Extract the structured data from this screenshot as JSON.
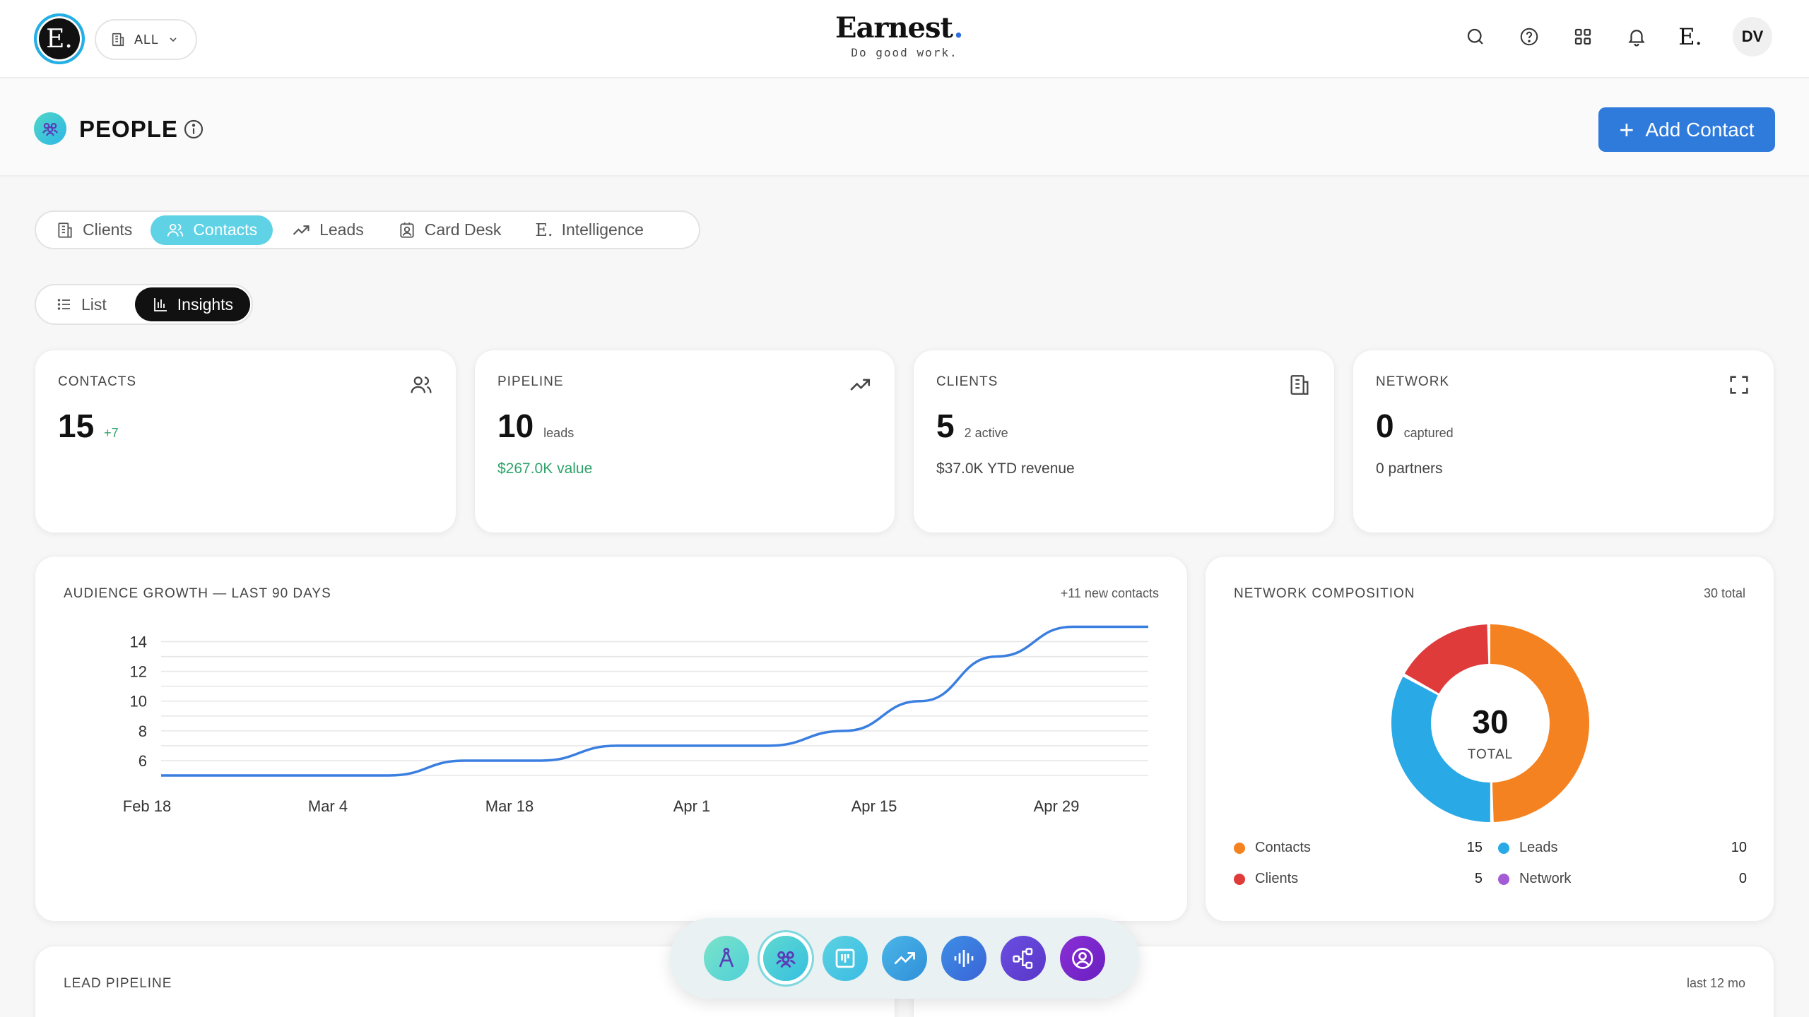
{
  "header": {
    "logo_letter": "E.",
    "scope": "ALL",
    "brand_name": "Earnest",
    "brand_dot": ".",
    "brand_tagline": "Do good work.",
    "intel_mark": "E.",
    "avatar_initials": "DV",
    "icons": [
      "search-icon",
      "help-icon",
      "grid-icon",
      "bell-icon",
      "intelligence-icon"
    ]
  },
  "page": {
    "title": "PEOPLE",
    "add_button": "Add Contact"
  },
  "tabs": [
    {
      "label": "Clients",
      "icon": "building-icon",
      "active": false
    },
    {
      "label": "Contacts",
      "icon": "users-icon",
      "active": true
    },
    {
      "label": "Leads",
      "icon": "trend-icon",
      "active": false
    },
    {
      "label": "Card Desk",
      "icon": "card-icon",
      "active": false
    },
    {
      "label": "Intelligence",
      "icon": "intelligence-icon",
      "active": false
    }
  ],
  "views": [
    {
      "label": "List",
      "active": false
    },
    {
      "label": "Insights",
      "active": true
    }
  ],
  "stats": [
    {
      "label": "CONTACTS",
      "value": "15",
      "sub": "+7",
      "foot": ""
    },
    {
      "label": "PIPELINE",
      "value": "10",
      "sub": "leads",
      "foot": "$267.0K value"
    },
    {
      "label": "CLIENTS",
      "value": "5",
      "sub": "2 active",
      "foot": "$37.0K YTD revenue"
    },
    {
      "label": "NETWORK",
      "value": "0",
      "sub": "captured",
      "foot": "0 partners"
    }
  ],
  "growth": {
    "title": "AUDIENCE GROWTH — LAST 90 DAYS",
    "note": "+11 new contacts"
  },
  "composition": {
    "title": "NETWORK COMPOSITION",
    "note": "30 total",
    "center_value": "30",
    "center_label": "TOTAL",
    "items": [
      {
        "name": "Contacts",
        "value": "15",
        "color": "#f58220"
      },
      {
        "name": "Leads",
        "value": "10",
        "color": "#29a9e6"
      },
      {
        "name": "Clients",
        "value": "5",
        "color": "#e03b3b"
      },
      {
        "name": "Network",
        "value": "0",
        "color": "#a35cd6"
      }
    ]
  },
  "bottom": {
    "lead_pipeline_title": "LEAD PIPELINE",
    "right_note": "last 12 mo"
  },
  "dock": [
    "compass-icon",
    "people-icon",
    "board-icon",
    "trend-icon",
    "voice-icon",
    "network-icon",
    "profile-icon"
  ],
  "chart_data": [
    {
      "type": "line",
      "title": "AUDIENCE GROWTH — LAST 90 DAYS",
      "xlabel": "",
      "ylabel": "",
      "x_ticks": [
        "Feb 18",
        "Mar 4",
        "Mar 18",
        "Apr 1",
        "Apr 15",
        "Apr 29"
      ],
      "y_ticks": [
        6,
        8,
        10,
        12,
        14
      ],
      "ylim": [
        5,
        14.5
      ],
      "grid": true,
      "series": [
        {
          "x": [
            "Feb 11",
            "Feb 18",
            "Feb 25",
            "Mar 4",
            "Mar 11",
            "Mar 18",
            "Mar 25",
            "Apr 1",
            "Apr 8",
            "Apr 15",
            "Apr 22",
            "Apr 29",
            "May 6",
            "May 12"
          ],
          "values": [
            5,
            5,
            5,
            5,
            6,
            6,
            7,
            7,
            7,
            8,
            10,
            13,
            15,
            15
          ]
        }
      ]
    },
    {
      "type": "pie",
      "title": "NETWORK COMPOSITION",
      "categories": [
        "Contacts",
        "Leads",
        "Clients",
        "Network"
      ],
      "values": [
        15,
        10,
        5,
        0
      ],
      "colors": [
        "#f58220",
        "#29a9e6",
        "#e03b3b",
        "#a35cd6"
      ],
      "legend": "bottom"
    }
  ]
}
